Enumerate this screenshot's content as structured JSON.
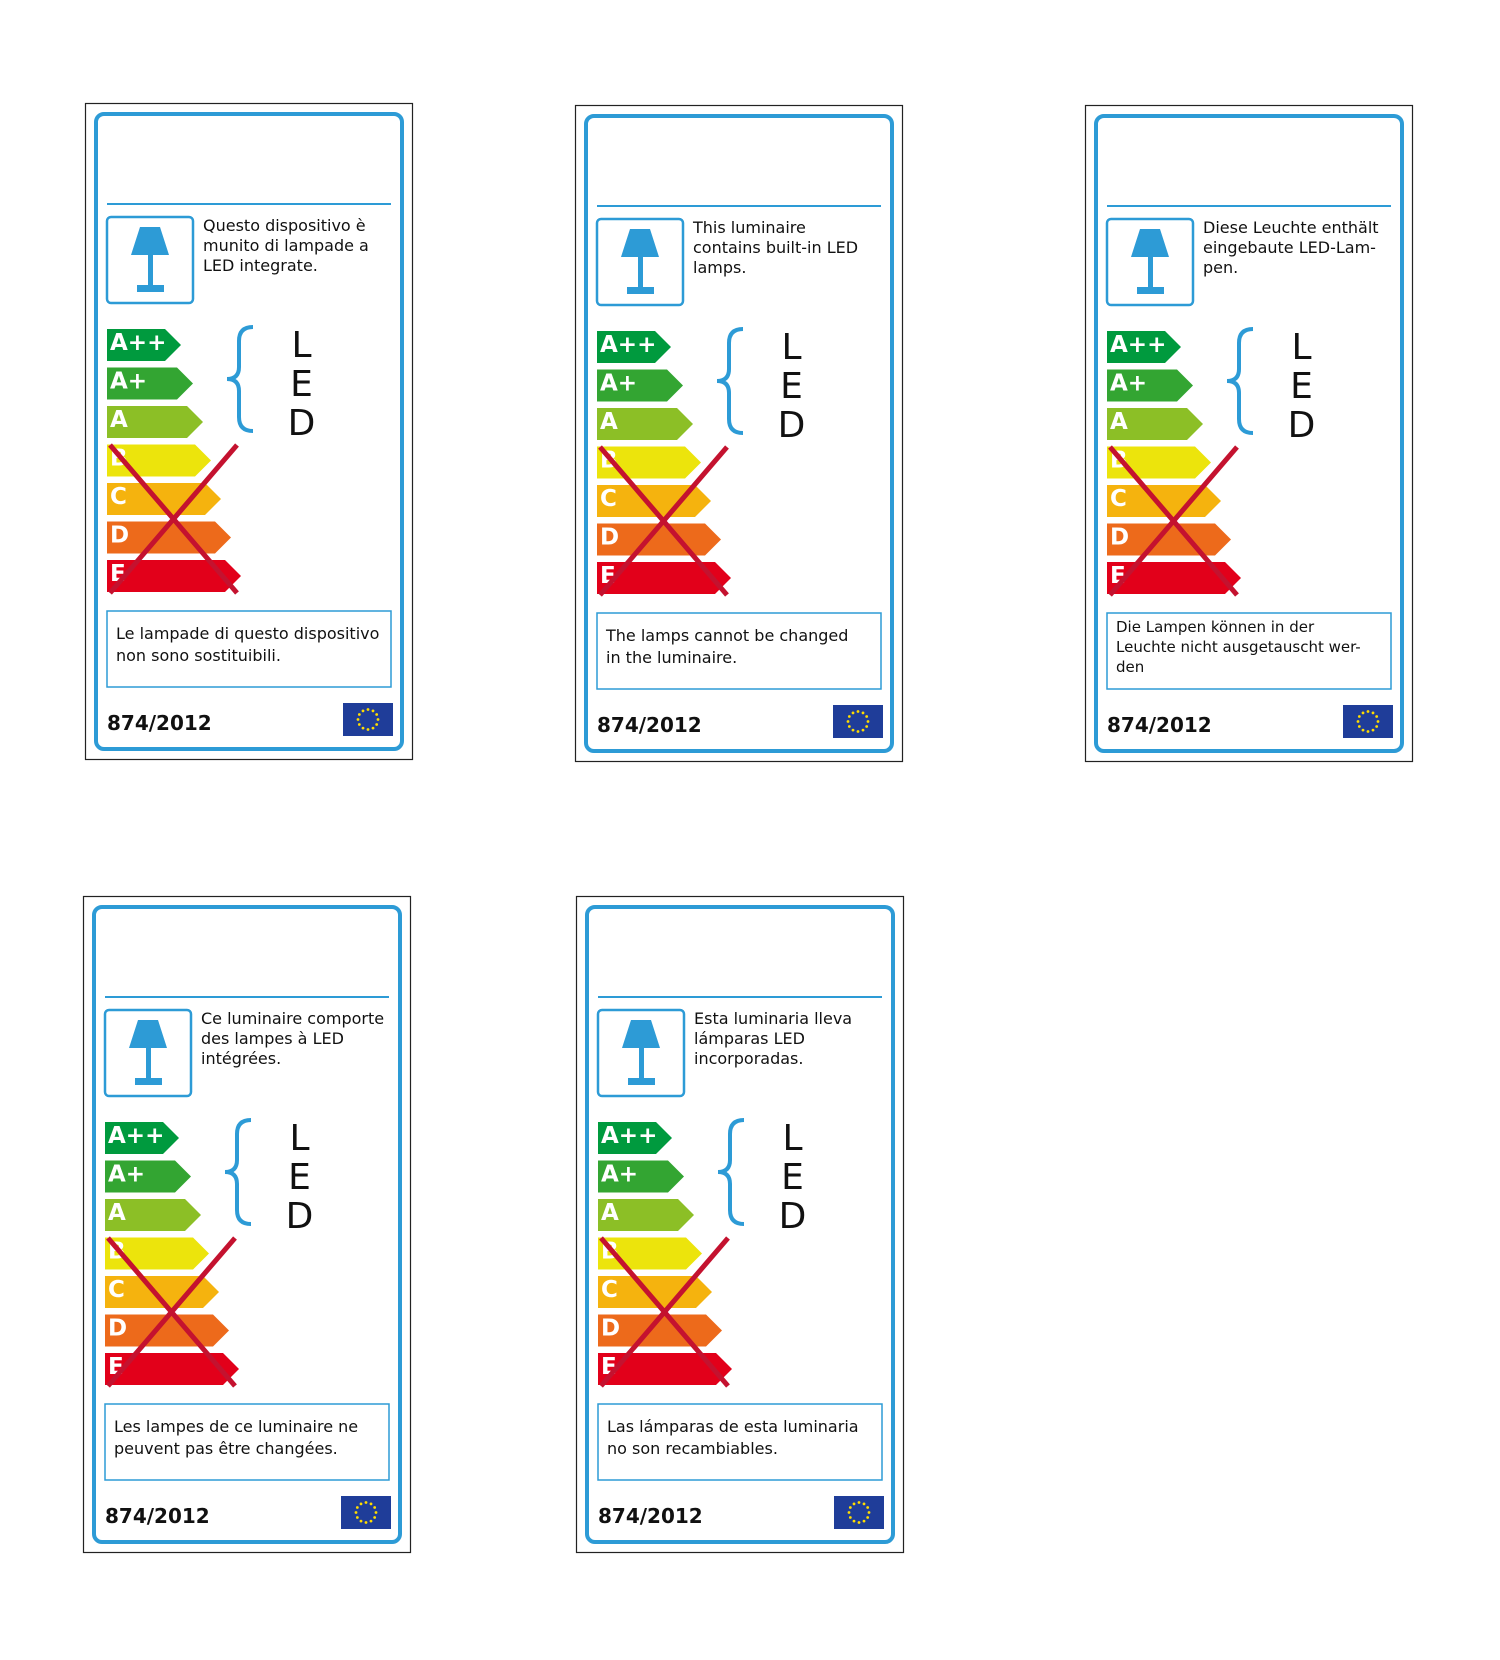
{
  "regulation": "874/2012",
  "energy_classes": [
    "A++",
    "A+",
    "A",
    "B",
    "C",
    "D",
    "E"
  ],
  "technology": "LED",
  "labels": [
    {
      "description": [
        "Questo dispositivo è",
        "munito di lampade a",
        "LED integrate."
      ],
      "note": [
        "Le lampade di questo dispositivo",
        "non sono sostituibili."
      ]
    },
    {
      "description": [
        "This luminaire",
        "contains built-in LED",
        "lamps."
      ],
      "note": [
        "The lamps cannot be changed",
        "in the luminaire."
      ]
    },
    {
      "description": [
        "Diese Leuchte enthält",
        "eingebaute LED-Lam-",
        "pen."
      ],
      "note": [
        "Die Lampen können in der",
        "Leuchte nicht ausgetauscht wer-",
        "den"
      ]
    },
    {
      "description": [
        "Ce luminaire comporte",
        "des lampes à LED",
        "intégrées."
      ],
      "note": [
        "Les lampes de ce luminaire ne",
        "peuvent pas être changées."
      ]
    },
    {
      "description": [
        "Esta luminaria lleva",
        "lámparas LED",
        "incorporadas."
      ],
      "note": [
        "Las lámparas de esta luminaria",
        "no son recambiables."
      ]
    }
  ]
}
